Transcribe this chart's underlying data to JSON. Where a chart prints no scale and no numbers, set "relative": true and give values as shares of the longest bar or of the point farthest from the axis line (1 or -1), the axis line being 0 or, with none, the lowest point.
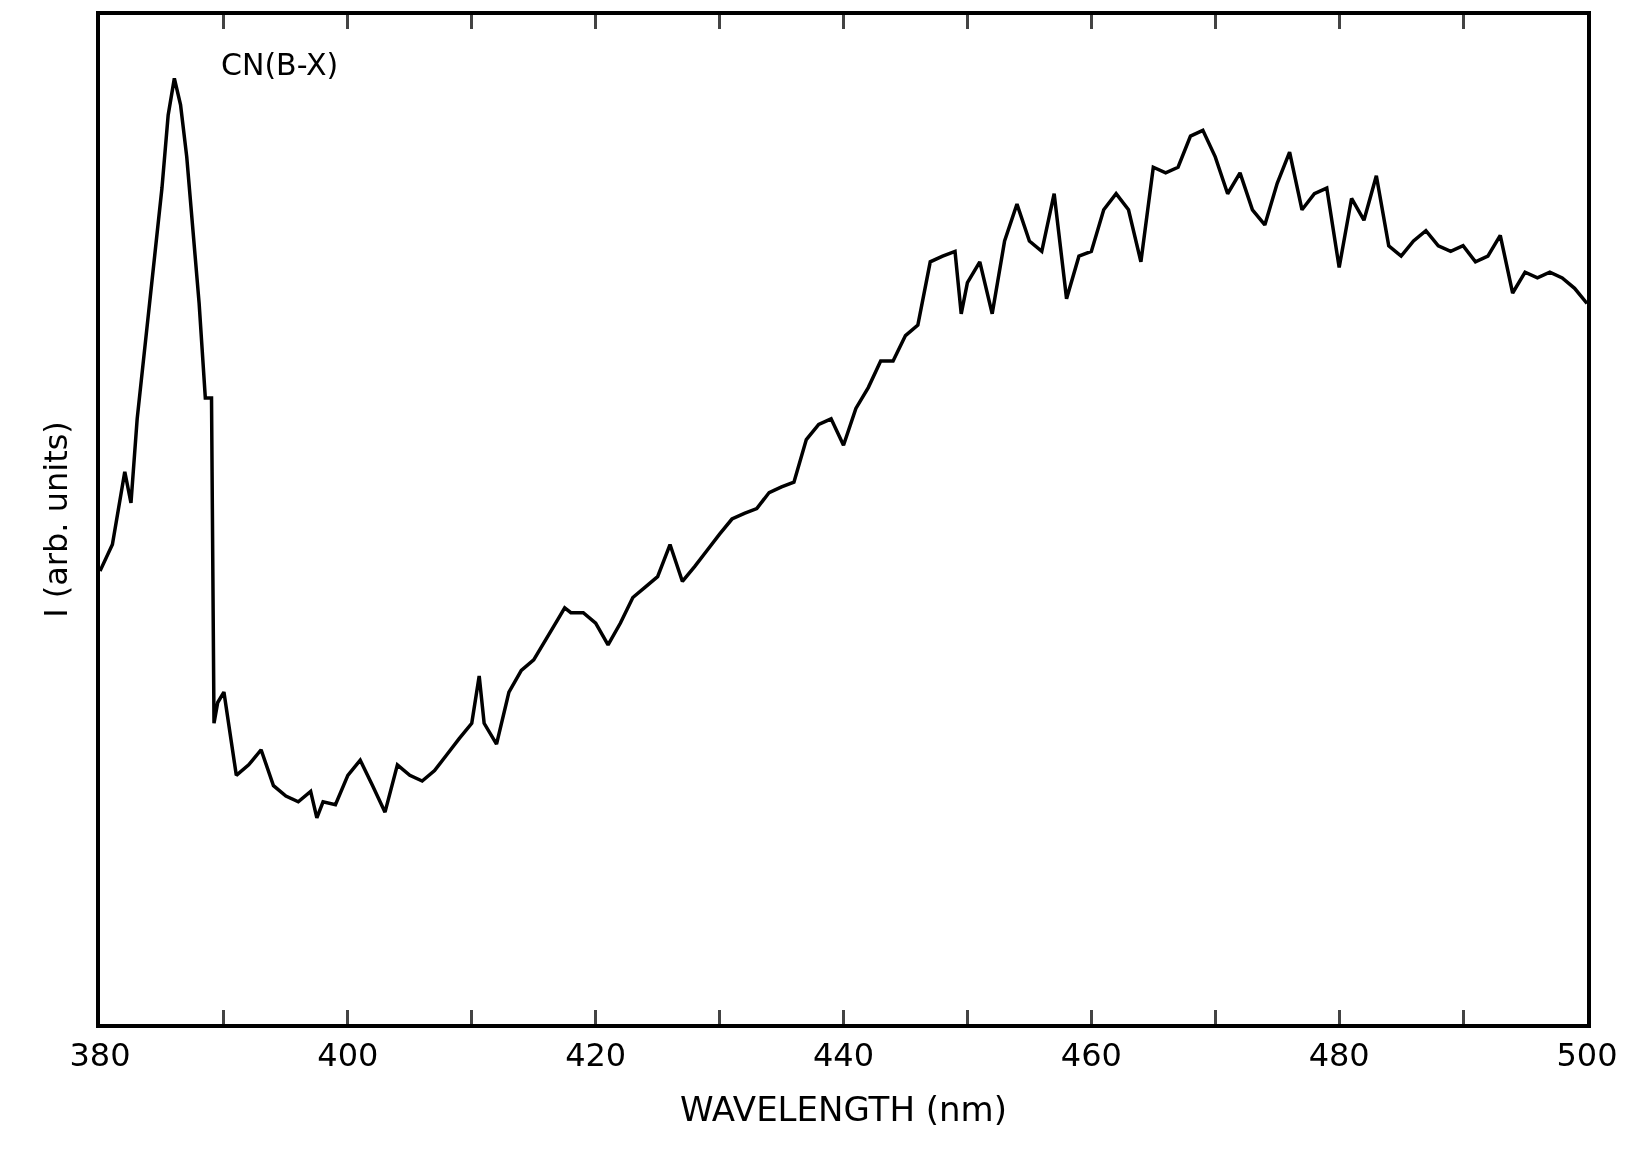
{
  "chart_data": {
    "type": "line",
    "relative": true,
    "xlabel": "WAVELENGTH (nm)",
    "ylabel": "I (arb. units)",
    "annotations": [
      "CN(B-X)"
    ],
    "xlim": [
      380,
      500
    ],
    "xticks": [
      380,
      {
        "value": 390,
        "label": null
      },
      400,
      {
        "value": 410,
        "label": null
      },
      420,
      {
        "value": 430,
        "label": null
      },
      440,
      {
        "value": 450,
        "label": null
      },
      460,
      {
        "value": 470,
        "label": null
      },
      480,
      {
        "value": 490,
        "label": null
      },
      500
    ],
    "marker": "none",
    "line_style": "solid",
    "x": [
      380,
      381,
      382,
      382.5,
      383,
      384,
      385,
      385.5,
      386,
      386.5,
      387,
      388,
      388.5,
      389,
      389.2,
      389.5,
      390,
      391,
      392,
      393,
      394,
      395,
      396,
      397,
      397.5,
      398,
      399,
      400,
      401,
      402,
      403,
      404,
      405,
      406,
      407,
      408,
      409,
      410,
      410.6,
      411,
      412,
      413,
      414,
      415,
      416,
      417,
      417.5,
      418,
      419,
      420,
      421,
      422,
      423,
      424,
      425,
      426,
      427,
      428,
      429,
      430,
      431,
      432,
      433,
      434,
      435,
      436,
      437,
      438,
      439,
      440,
      441,
      442,
      443,
      444,
      445,
      446,
      447,
      448,
      449,
      449.5,
      450,
      451,
      452,
      453,
      454,
      455,
      456,
      457,
      458,
      459,
      460,
      461,
      462,
      463,
      464,
      465,
      466,
      467,
      468,
      469,
      470,
      471,
      472,
      473,
      474,
      475,
      476,
      477,
      478,
      479,
      480,
      481,
      482,
      483,
      484,
      485,
      486,
      487,
      488,
      489,
      490,
      491,
      492,
      493,
      494,
      495,
      496,
      497,
      498,
      499,
      500
    ],
    "series": [
      {
        "color": "#000000",
        "values": [
          0.479,
          0.507,
          0.584,
          0.551,
          0.64,
          0.762,
          0.884,
          0.961,
          1,
          0.972,
          0.917,
          0.762,
          0.662,
          0.662,
          0.318,
          0.34,
          0.351,
          0.263,
          0.274,
          0.29,
          0.252,
          0.241,
          0.235,
          0.246,
          0.218,
          0.235,
          0.232,
          0.263,
          0.279,
          0.252,
          0.224,
          0.274,
          0.263,
          0.257,
          0.268,
          0.285,
          0.302,
          0.318,
          0.368,
          0.318,
          0.296,
          0.351,
          0.374,
          0.385,
          0.407,
          0.429,
          0.44,
          0.435,
          0.435,
          0.424,
          0.401,
          0.424,
          0.451,
          0.462,
          0.473,
          0.507,
          0.468,
          0.484,
          0.501,
          0.518,
          0.534,
          0.54,
          0.545,
          0.562,
          0.568,
          0.573,
          0.618,
          0.634,
          0.64,
          0.612,
          0.651,
          0.673,
          0.701,
          0.701,
          0.728,
          0.739,
          0.806,
          0.812,
          0.817,
          0.751,
          0.784,
          0.806,
          0.751,
          0.828,
          0.867,
          0.828,
          0.817,
          0.878,
          0.767,
          0.812,
          0.817,
          0.861,
          0.878,
          0.861,
          0.806,
          0.906,
          0.9,
          0.906,
          0.939,
          0.945,
          0.917,
          0.878,
          0.9,
          0.861,
          0.845,
          0.889,
          0.922,
          0.861,
          0.878,
          0.884,
          0.8,
          0.873,
          0.85,
          0.897,
          0.823,
          0.812,
          0.828,
          0.839,
          0.823,
          0.817,
          0.823,
          0.806,
          0.812,
          0.834,
          0.773,
          0.795,
          0.789,
          0.795,
          0.789,
          0.778,
          0.762
        ]
      }
    ]
  }
}
